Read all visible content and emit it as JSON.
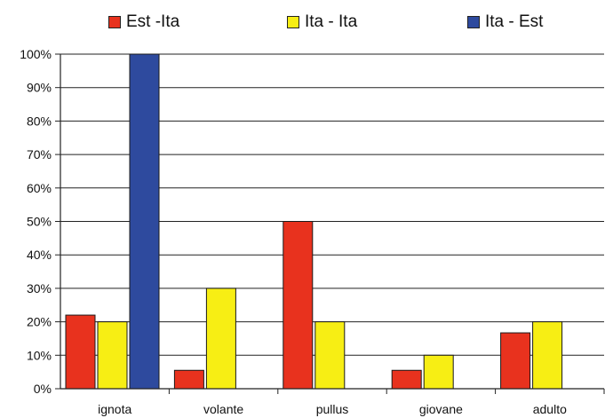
{
  "chart_data": {
    "type": "bar",
    "title": "",
    "xlabel": "",
    "ylabel": "",
    "categories": [
      "ignota",
      "volante",
      "pullus",
      "giovane",
      "adulto"
    ],
    "series": [
      {
        "name": "Est -Ita",
        "color": "#e8321e",
        "values": [
          22,
          5.5,
          50,
          5.5,
          16.7
        ]
      },
      {
        "name": "Ita - Ita",
        "color": "#f7ee14",
        "values": [
          20,
          30,
          20,
          10,
          20
        ]
      },
      {
        "name": "Ita - Est",
        "color": "#2e4a9e",
        "values": [
          100,
          0,
          0,
          0,
          0
        ]
      }
    ],
    "yticks": [
      "0%",
      "10%",
      "20%",
      "30%",
      "40%",
      "50%",
      "60%",
      "70%",
      "80%",
      "90%",
      "100%"
    ],
    "ylim": [
      0,
      100
    ],
    "grid": true,
    "legend_position": "top"
  }
}
